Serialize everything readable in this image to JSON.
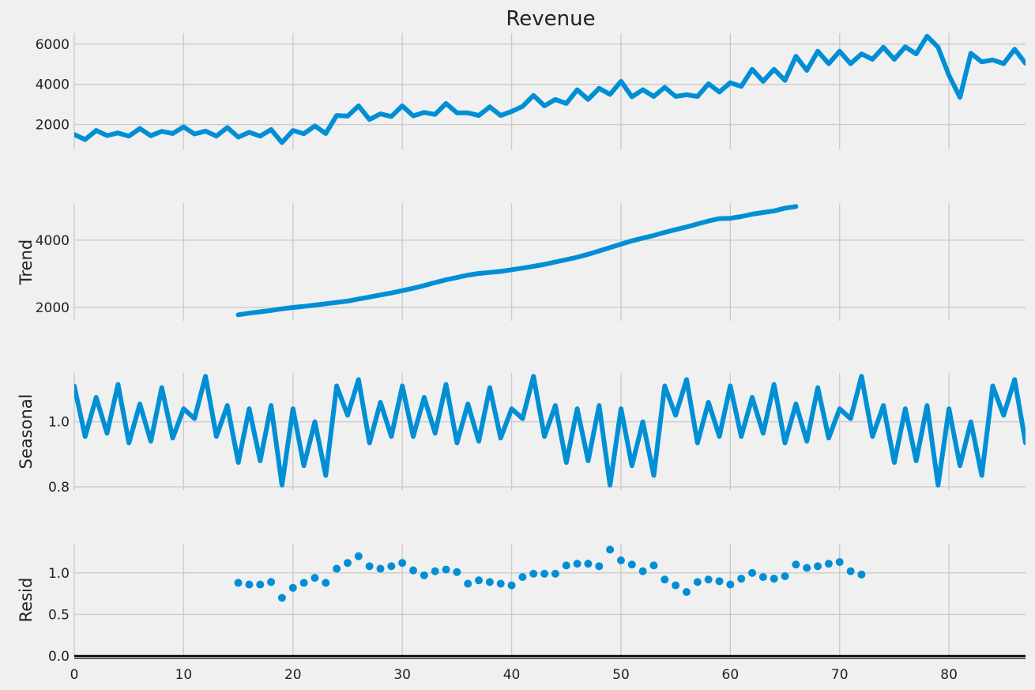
{
  "chart_data": {
    "type": "line",
    "title": "Revenue",
    "x": {
      "ticks": [
        0,
        10,
        20,
        30,
        40,
        50,
        60,
        70,
        80
      ],
      "tick_labels": [
        "0",
        "10",
        "20",
        "30",
        "40",
        "50",
        "60",
        "70",
        "80"
      ],
      "range": [
        0,
        87
      ]
    },
    "grid": true,
    "panels": [
      {
        "id": "observed",
        "type": "line",
        "title": "Revenue",
        "ylabel": "",
        "ylim": [
          760,
          6550
        ],
        "yticks": [
          2000,
          4000,
          6000
        ],
        "ytick_labels": [
          "2000",
          "4000",
          "6000"
        ],
        "x_start": 0,
        "values": [
          1500,
          1250,
          1700,
          1450,
          1580,
          1420,
          1800,
          1440,
          1660,
          1550,
          1880,
          1530,
          1670,
          1420,
          1850,
          1370,
          1610,
          1420,
          1750,
          1100,
          1700,
          1540,
          1930,
          1550,
          2450,
          2420,
          2930,
          2250,
          2530,
          2400,
          2930,
          2430,
          2600,
          2500,
          3050,
          2580,
          2580,
          2450,
          2880,
          2450,
          2650,
          2900,
          3450,
          2930,
          3250,
          3050,
          3730,
          3250,
          3800,
          3500,
          4150,
          3380,
          3730,
          3400,
          3850,
          3400,
          3480,
          3400,
          4030,
          3620,
          4080,
          3900,
          4750,
          4150,
          4750,
          4200,
          5400,
          4700,
          5650,
          5030,
          5650,
          5030,
          5520,
          5250,
          5850,
          5250,
          5870,
          5520,
          6400,
          5850,
          4450,
          3350,
          5550,
          5120,
          5220,
          5030,
          5750,
          5050
        ]
      },
      {
        "id": "trend",
        "type": "line",
        "ylabel": "Trend",
        "ylim": [
          1600,
          5100
        ],
        "yticks": [
          2000,
          4000
        ],
        "ytick_labels": [
          "2000",
          "4000"
        ],
        "x_start": 15,
        "values": [
          1780,
          1830,
          1870,
          1910,
          1960,
          2000,
          2030,
          2070,
          2110,
          2150,
          2190,
          2250,
          2310,
          2370,
          2430,
          2500,
          2570,
          2650,
          2740,
          2820,
          2890,
          2960,
          3010,
          3040,
          3070,
          3120,
          3170,
          3220,
          3280,
          3350,
          3420,
          3490,
          3580,
          3680,
          3780,
          3880,
          3980,
          4060,
          4140,
          4230,
          4310,
          4390,
          4480,
          4570,
          4640,
          4650,
          4700,
          4770,
          4820,
          4870,
          4950,
          5000
        ]
      },
      {
        "id": "seasonal",
        "type": "line",
        "ylabel": "Seasonal",
        "ylim": [
          0.79,
          1.15
        ],
        "yticks": [
          0.8,
          1.0
        ],
        "ytick_labels": [
          "0.8",
          "1.0"
        ],
        "x_start": 0,
        "values": [
          1.11,
          0.955,
          1.075,
          0.965,
          1.115,
          0.935,
          1.055,
          0.94,
          1.105,
          0.95,
          1.04,
          1.01,
          1.14,
          0.955,
          1.05,
          0.875,
          1.04,
          0.88,
          1.05,
          0.805,
          1.04,
          0.865,
          1.0,
          0.835,
          1.11,
          1.02,
          1.13,
          0.935,
          1.06,
          0.955,
          1.11,
          0.955,
          1.075,
          0.965,
          1.115,
          0.935,
          1.055,
          0.94,
          1.105,
          0.95,
          1.04,
          1.01,
          1.14,
          0.955,
          1.05,
          0.875,
          1.04,
          0.88,
          1.05,
          0.805,
          1.04,
          0.865,
          1.0,
          0.835,
          1.11,
          1.02,
          1.13,
          0.935,
          1.06,
          0.955,
          1.11,
          0.955,
          1.075,
          0.965,
          1.115,
          0.935,
          1.055,
          0.94,
          1.105,
          0.95,
          1.04,
          1.01,
          1.14,
          0.955,
          1.05,
          0.875,
          1.04,
          0.88,
          1.05,
          0.805,
          1.04,
          0.865,
          1.0,
          0.835,
          1.11,
          1.02,
          1.13,
          0.935
        ]
      },
      {
        "id": "resid",
        "type": "scatter",
        "ylabel": "Resid",
        "ylim": [
          0.0,
          1.35
        ],
        "yticks": [
          0.0,
          0.5,
          1.0
        ],
        "ytick_labels": [
          "0.0",
          "0.5",
          "1.0"
        ],
        "baseline": 0.0,
        "x_start": 15,
        "values": [
          0.88,
          0.86,
          0.86,
          0.89,
          0.7,
          0.82,
          0.88,
          0.94,
          0.88,
          1.05,
          1.12,
          1.2,
          1.08,
          1.05,
          1.08,
          1.12,
          1.03,
          0.97,
          1.02,
          1.04,
          1.01,
          0.87,
          0.91,
          0.89,
          0.87,
          0.85,
          0.95,
          0.99,
          0.99,
          0.99,
          1.09,
          1.11,
          1.11,
          1.08,
          1.28,
          1.15,
          1.1,
          1.02,
          1.09,
          0.92,
          0.85,
          0.77,
          0.89,
          0.92,
          0.9,
          0.86,
          0.93,
          1.0,
          0.95,
          0.93,
          0.96,
          1.1,
          1.06,
          1.08,
          1.11,
          1.13,
          1.02,
          0.98
        ]
      }
    ]
  }
}
